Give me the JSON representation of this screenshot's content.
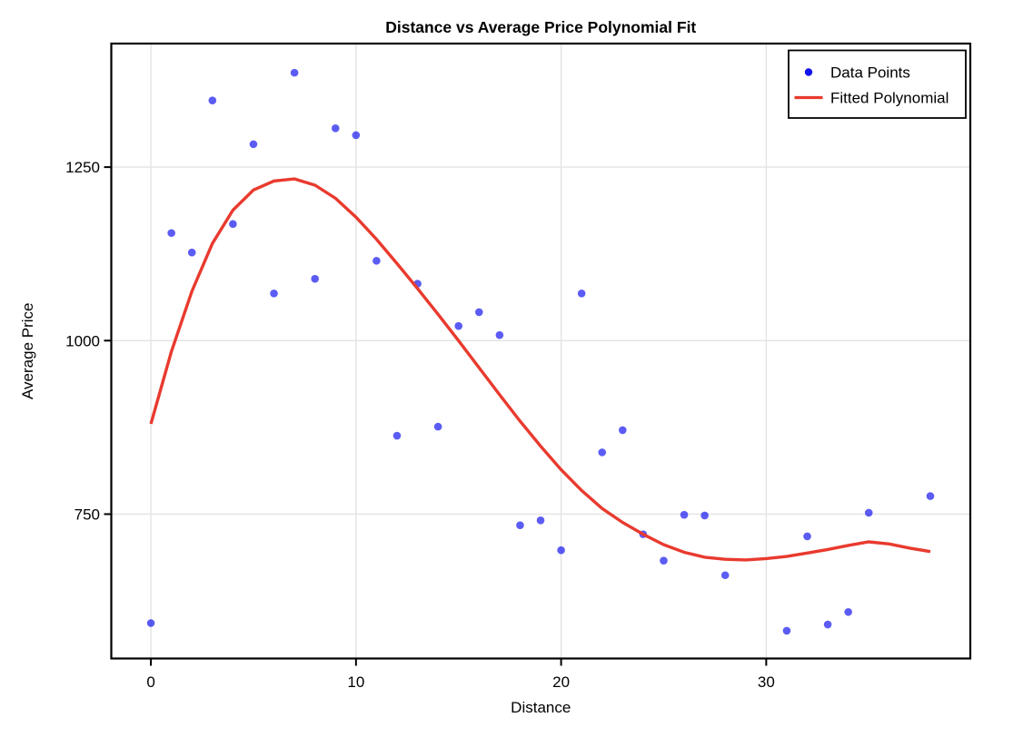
{
  "page": {
    "background": "#FFFFFF"
  },
  "chart_data": {
    "type": "scatter",
    "title": "Distance vs Average Price Polynomial Fit",
    "xlabel": "Distance",
    "ylabel": "Average Price",
    "xlim": [
      -1.93,
      39.95
    ],
    "ylim": [
      542,
      1428
    ],
    "x_ticks": [
      0,
      10,
      20,
      30
    ],
    "y_ticks": [
      750,
      1000,
      1250
    ],
    "grid": true,
    "grid_color": "#E3E3E3",
    "frame_color": "#000000",
    "text_color": "#000000",
    "background_color": "#FFFFFF",
    "legend": {
      "position": "top-right",
      "entries": [
        {
          "label": "Data Points",
          "marker": "point",
          "color": "#0000EE"
        },
        {
          "label": "Fitted Polynomial",
          "marker": "line",
          "color": "#E93A2E"
        }
      ]
    },
    "series": [
      {
        "name": "Data Points",
        "type": "scatter",
        "color": "#0000EE",
        "opacity": 0.64,
        "marker_radius": 4.3,
        "points": [
          [
            0,
            593
          ],
          [
            1,
            1155
          ],
          [
            2,
            1127
          ],
          [
            3,
            1346
          ],
          [
            4,
            1168
          ],
          [
            5,
            1283
          ],
          [
            6,
            1068
          ],
          [
            7,
            1386
          ],
          [
            8,
            1089
          ],
          [
            9,
            1306
          ],
          [
            10,
            1296
          ],
          [
            11,
            1115
          ],
          [
            12,
            863
          ],
          [
            13,
            1082
          ],
          [
            14,
            876
          ],
          [
            15,
            1021
          ],
          [
            16,
            1041
          ],
          [
            17,
            1008
          ],
          [
            18,
            734
          ],
          [
            19,
            741
          ],
          [
            20,
            698
          ],
          [
            21,
            1068
          ],
          [
            22,
            839
          ],
          [
            23,
            871
          ],
          [
            24,
            721
          ],
          [
            25,
            683
          ],
          [
            26,
            749
          ],
          [
            27,
            748
          ],
          [
            28,
            662
          ],
          [
            31,
            582
          ],
          [
            32,
            718
          ],
          [
            33,
            591
          ],
          [
            34,
            609
          ],
          [
            35,
            752
          ],
          [
            38,
            776
          ]
        ]
      },
      {
        "name": "Fitted Polynomial",
        "type": "line",
        "color": "#E93A2E",
        "line_width": 3.4,
        "points": [
          [
            0,
            880
          ],
          [
            1,
            984
          ],
          [
            2,
            1071
          ],
          [
            3,
            1140
          ],
          [
            4,
            1188
          ],
          [
            5,
            1217
          ],
          [
            6,
            1230
          ],
          [
            7,
            1233
          ],
          [
            8,
            1224
          ],
          [
            9,
            1205
          ],
          [
            10,
            1178
          ],
          [
            11,
            1146
          ],
          [
            12,
            1111
          ],
          [
            13,
            1075
          ],
          [
            14,
            1038
          ],
          [
            15,
            1000
          ],
          [
            16,
            961
          ],
          [
            17,
            922
          ],
          [
            18,
            884
          ],
          [
            19,
            848
          ],
          [
            20,
            814
          ],
          [
            21,
            784
          ],
          [
            22,
            758
          ],
          [
            23,
            738
          ],
          [
            24,
            721
          ],
          [
            25,
            706
          ],
          [
            26,
            695
          ],
          [
            27,
            688
          ],
          [
            28,
            685
          ],
          [
            29,
            684
          ],
          [
            30,
            686
          ],
          [
            31,
            689
          ],
          [
            32,
            694
          ],
          [
            33,
            699
          ],
          [
            34,
            705
          ],
          [
            35,
            710
          ],
          [
            36,
            707
          ],
          [
            37,
            701
          ],
          [
            38,
            696
          ]
        ]
      }
    ]
  }
}
